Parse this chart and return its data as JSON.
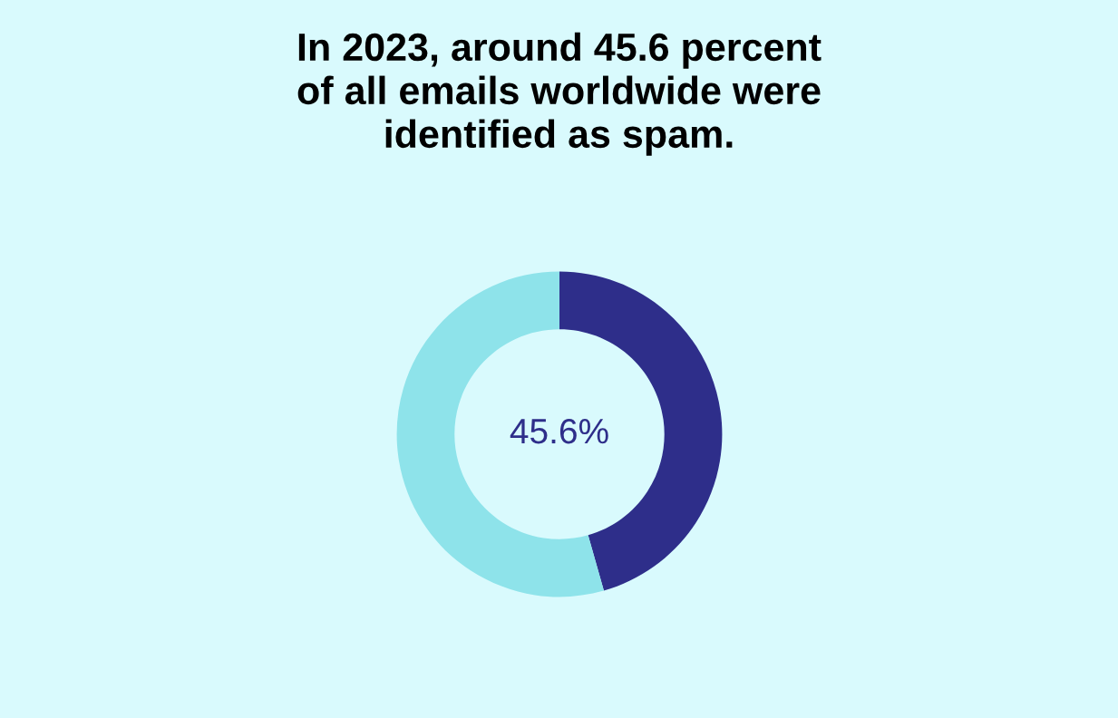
{
  "chart_data": {
    "type": "donut",
    "title": "In 2023, around 45.6 percent\nof all emails worldwide were\nidentified as spam.",
    "categories": [
      null,
      null
    ],
    "values": [
      45.6,
      54.4
    ],
    "colors": [
      "#2e2e8a",
      "#8ee3ea"
    ],
    "value_labels": [
      "45.6%",
      null
    ]
  }
}
